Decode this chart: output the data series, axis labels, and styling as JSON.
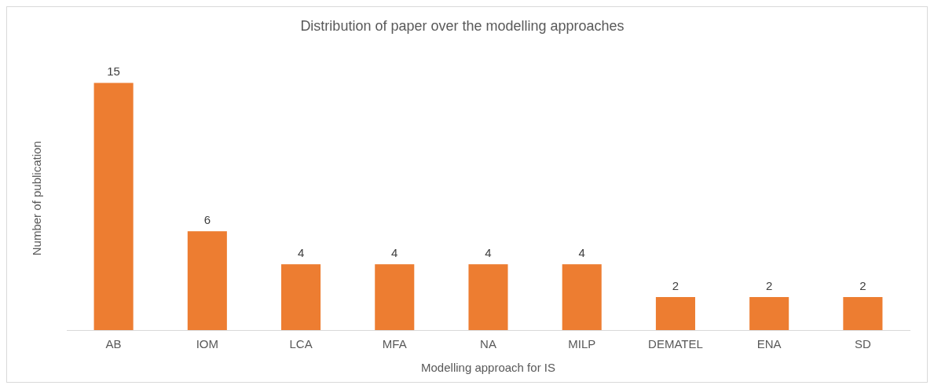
{
  "chart_data": {
    "type": "bar",
    "title": "Distribution of paper over the modelling approaches",
    "xlabel": "Modelling approach for IS",
    "ylabel": "Number of publication",
    "categories": [
      "AB",
      "IOM",
      "LCA",
      "MFA",
      "NA",
      "MILP",
      "DEMATEL",
      "ENA",
      "SD"
    ],
    "values": [
      15,
      6,
      4,
      4,
      4,
      4,
      2,
      2,
      2
    ],
    "color": "#ed7d31",
    "data_labels": true,
    "tick_labels": "x",
    "grid": false,
    "legend": false
  }
}
